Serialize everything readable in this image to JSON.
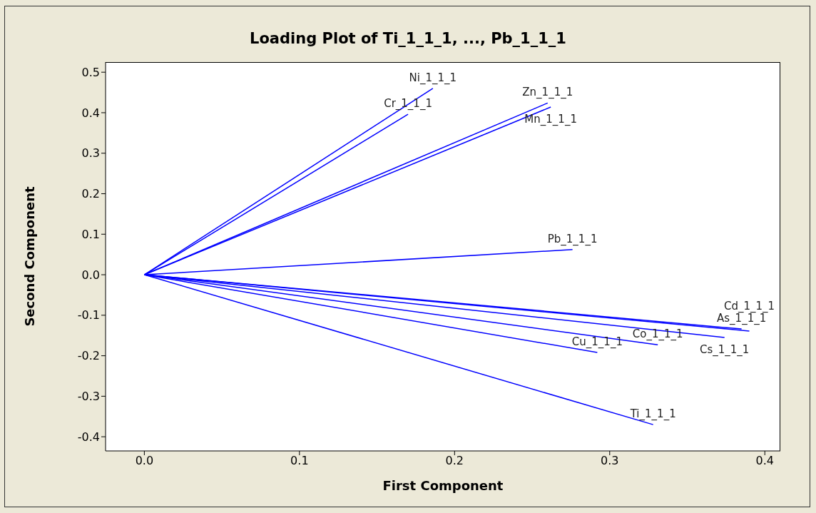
{
  "chart_data": {
    "type": "line",
    "title": "Loading Plot of Ti_1_1_1, ..., Pb_1_1_1",
    "xlabel": "First Component",
    "ylabel": "Second Component",
    "xlim": [
      -0.025,
      0.41
    ],
    "xticks": [
      {
        "value": 0,
        "label": "0.0"
      },
      0.1,
      0.2,
      0.3,
      0.4
    ],
    "ylim": [
      -0.435,
      0.525
    ],
    "yticks": [
      -0.4,
      -0.3,
      -0.2,
      -0.1,
      {
        "value": 0,
        "label": "0.0"
      },
      0.1,
      0.2,
      0.3,
      0.4,
      0.5
    ],
    "marker": "none",
    "legend": false,
    "series": [
      {
        "name": "Ni_1_1_1",
        "color": "#0000ff",
        "x": [
          0,
          0.186
        ],
        "values": [
          0,
          0.46
        ]
      },
      {
        "name": "Cr_1_1_1",
        "color": "#0000ff",
        "x": [
          0,
          0.17
        ],
        "values": [
          0,
          0.396
        ]
      },
      {
        "name": "Zn_1_1_1",
        "color": "#0000ff",
        "x": [
          0,
          0.26
        ],
        "values": [
          0,
          0.424
        ]
      },
      {
        "name": "Mn_1_1_1",
        "color": "#0000ff",
        "x": [
          0,
          0.262
        ],
        "values": [
          0,
          0.414
        ]
      },
      {
        "name": "Pb_1_1_1",
        "color": "#0000ff",
        "x": [
          0,
          0.276
        ],
        "values": [
          0,
          0.062
        ]
      },
      {
        "name": "As_1_1_1",
        "color": "#0000ff",
        "x": [
          0,
          0.385
        ],
        "values": [
          0,
          -0.134
        ]
      },
      {
        "name": "Cd_1_1_1",
        "color": "#0000ff",
        "x": [
          0,
          0.39
        ],
        "values": [
          0,
          -0.139
        ]
      },
      {
        "name": "Cs_1_1_1",
        "color": "#0000ff",
        "x": [
          0,
          0.374
        ],
        "values": [
          0,
          -0.155
        ]
      },
      {
        "name": "Co_1_1_1",
        "color": "#0000ff",
        "x": [
          0,
          0.331
        ],
        "values": [
          0,
          -0.173
        ]
      },
      {
        "name": "Cu_1_1_1",
        "color": "#0000ff",
        "x": [
          0,
          0.292
        ],
        "values": [
          0,
          -0.192
        ]
      },
      {
        "name": "Ti_1_1_1",
        "color": "#0000ff",
        "x": [
          0,
          0.328
        ],
        "values": [
          0,
          -0.37
        ]
      }
    ]
  }
}
